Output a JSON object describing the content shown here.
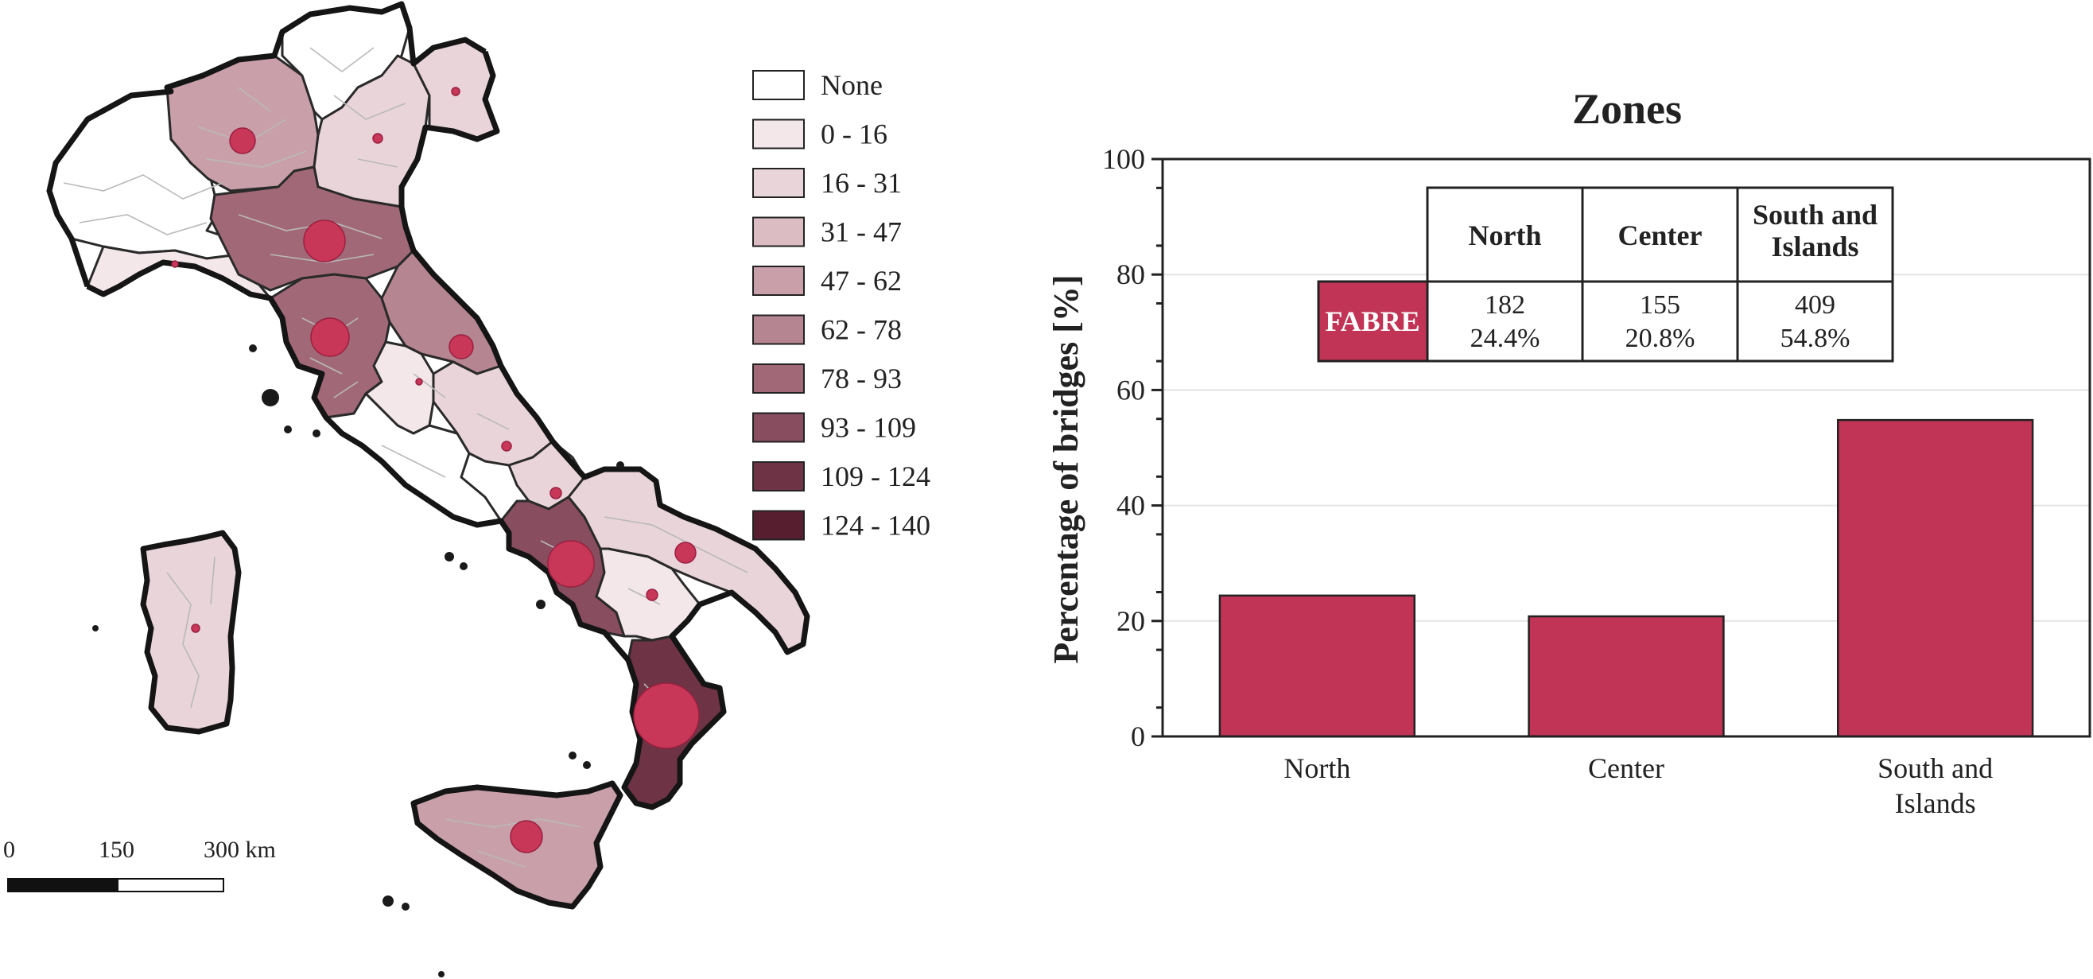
{
  "map": {
    "legend": {
      "items": [
        {
          "label": "None",
          "color": "#ffffff"
        },
        {
          "label": "0 - 16",
          "color": "#f3e7ea"
        },
        {
          "label": "16 - 31",
          "color": "#e9d4d9"
        },
        {
          "label": "31 - 47",
          "color": "#dcbcc3"
        },
        {
          "label": "47 - 62",
          "color": "#c9a0aa"
        },
        {
          "label": "62 - 78",
          "color": "#b68592"
        },
        {
          "label": "78 - 93",
          "color": "#a16978"
        },
        {
          "label": "93 - 109",
          "color": "#884d5e"
        },
        {
          "label": "109 - 124",
          "color": "#6e3345"
        },
        {
          "label": "124 - 140",
          "color": "#571e30"
        }
      ]
    },
    "scalebar": {
      "labels": [
        "0",
        "150",
        "300 km"
      ]
    }
  },
  "chart_data": {
    "type": "bar",
    "title": "Zones",
    "xlabel": "",
    "ylabel": "Percentage of bridges [%]",
    "categories": [
      "North",
      "Center",
      "South and Islands"
    ],
    "values": [
      24.4,
      20.8,
      54.8
    ],
    "ylim": [
      0,
      100
    ],
    "yticks": [
      "0",
      "20",
      "40",
      "60",
      "80",
      "100"
    ],
    "grid": true,
    "bar_color": "#c13455",
    "table": {
      "columns": [
        "North",
        "Center",
        "South and Islands"
      ],
      "row_header": "FABRE",
      "counts": [
        "182",
        "155",
        "409"
      ],
      "percents": [
        "24.4%",
        "20.8%",
        "54.8%"
      ]
    }
  }
}
